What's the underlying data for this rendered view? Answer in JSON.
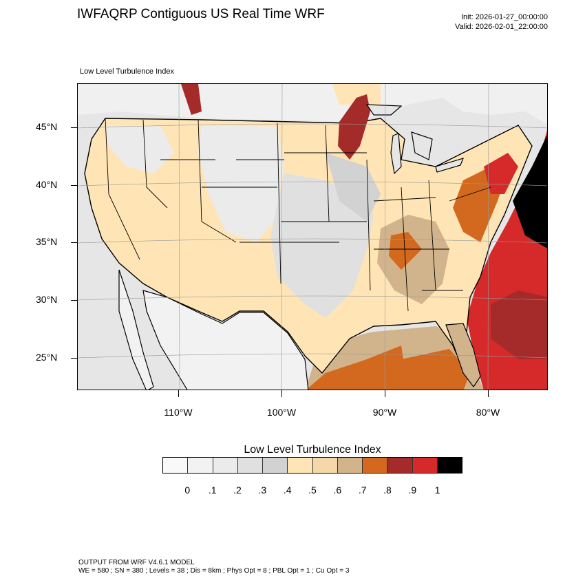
{
  "header": {
    "title": "IWFAQRP Contiguous US Real Time WRF",
    "init": "Init: 2026-01-27_00:00:00",
    "valid": "Valid: 2026-02-01_22:00:00"
  },
  "map": {
    "field_label": "Low Level Turbulence Index",
    "region": "Contiguous United States",
    "longitude_ticks": [
      "110°W",
      "100°W",
      "90°W",
      "80°W"
    ],
    "latitude_ticks": [
      "45°N",
      "40°N",
      "35°N",
      "30°N",
      "25°N"
    ]
  },
  "colorbar": {
    "title": "Low Level Turbulence Index",
    "colors": [
      "#f9f9f9",
      "#f2f2f2",
      "#ebebeb",
      "#e0e0e0",
      "#d2d2d2",
      "#ffe4b5",
      "#f4d8a8",
      "#d2b48c",
      "#d2691e",
      "#a52a2a",
      "#d62a2a",
      "#000000"
    ],
    "labels": [
      "0",
      ".1",
      ".2",
      ".3",
      ".4",
      ".5",
      ".6",
      ".7",
      ".8",
      ".9",
      "1"
    ]
  },
  "footer": {
    "model": "OUTPUT FROM WRF V4.6.1 MODEL",
    "params": "WE = 580 ; SN = 380 ; Levels = 38 ; Dis = 8km ; Phys Opt = 8 ; PBL Opt = 1 ; Cu Opt = 3"
  }
}
